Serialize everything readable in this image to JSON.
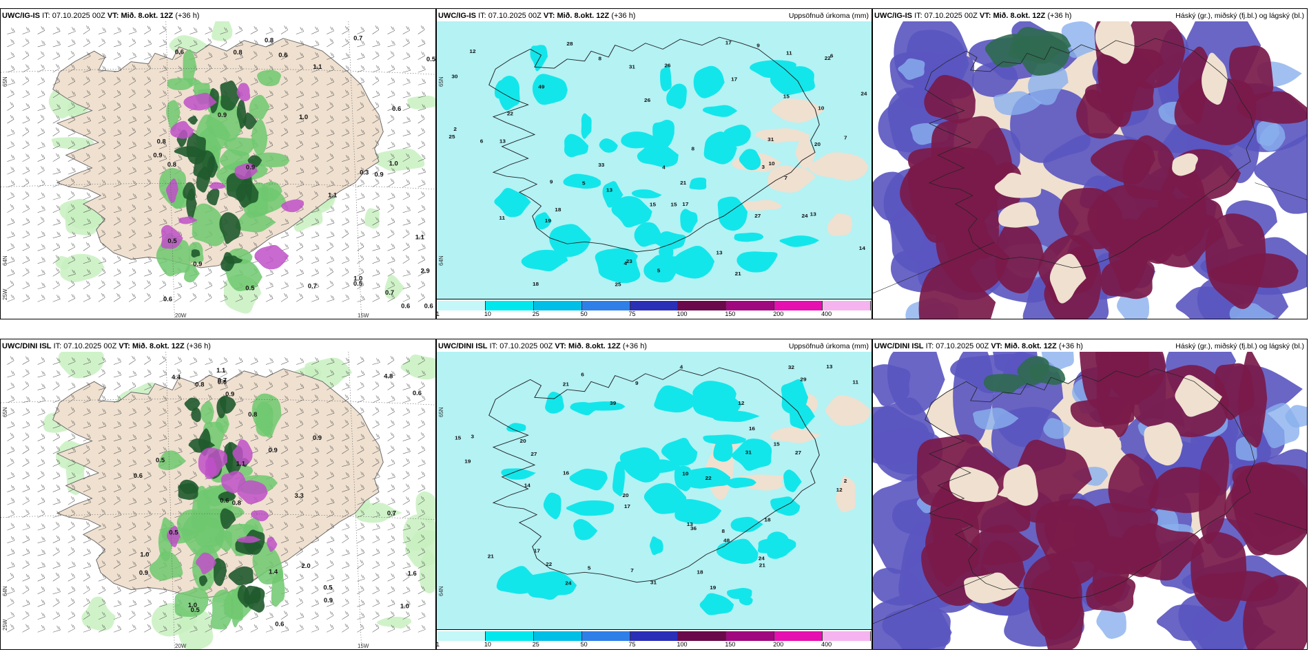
{
  "panels": [
    {
      "id": "ig-precip-type",
      "header": {
        "model": "UWC/IG-IS",
        "it_label": "IT:",
        "it": "07.10.2025 00Z",
        "vt_label": "VT:",
        "vt": "Mið. 8.okt. 12Z",
        "lead": "(+36 h)",
        "right": ""
      },
      "axis": {
        "lat1": "65N",
        "lat2": "64N",
        "lon1": "20W",
        "lon2": "15W",
        "lon3": "25W"
      },
      "values": [
        "0.5",
        "0.9",
        "0.8",
        "0.6",
        "0.7",
        "0.6",
        "1.0",
        "0.9",
        "0.7",
        "1.1",
        "0.3",
        "0.5",
        "0.6",
        "0.6",
        "0.8",
        "2.9",
        "1.0",
        "1.1",
        "0.6",
        "0.9",
        "1.0",
        "0.5",
        "0.9",
        "0.6",
        "0.5",
        "0.8",
        "0.8",
        "0.7",
        "0.9",
        "1.1"
      ]
    },
    {
      "id": "ig-precip-accum",
      "header": {
        "model": "UWC/IG-IS",
        "it_label": "IT:",
        "it": "07.10.2025 00Z",
        "vt_label": "VT:",
        "vt": "Mið. 8.okt. 12Z",
        "lead": "(+36 h)",
        "right": "Uppsöfnuð úrkoma (mm)"
      },
      "axis": {
        "lat1": "65N",
        "lat2": "64N"
      },
      "values": [
        "21",
        "25",
        "28",
        "23",
        "31",
        "18",
        "13",
        "11",
        "21",
        "20",
        "15",
        "17",
        "18",
        "22",
        "22",
        "24",
        "26",
        "17",
        "14",
        "13",
        "24",
        "25",
        "31",
        "26",
        "19",
        "27",
        "15",
        "30",
        "33",
        "49",
        "17",
        "13",
        "12",
        "15",
        "6",
        "5",
        "7",
        "4",
        "8",
        "9",
        "10",
        "5",
        "3",
        "2",
        "6",
        "7",
        "8",
        "4",
        "9",
        "11",
        "13",
        "10"
      ]
    },
    {
      "id": "ig-cloud",
      "header": {
        "model": "UWC/IG-IS",
        "it_label": "IT:",
        "it": "07.10.2025 00Z",
        "vt_label": "VT:",
        "vt": "Mið. 8.okt. 12Z",
        "lead": "(+36 h)",
        "right": "Háský (gr.), miðský (fj.bl.) og lágský (bl.)"
      }
    },
    {
      "id": "dini-precip-type",
      "header": {
        "model": "UWC/DINI ISL",
        "it_label": "IT:",
        "it": "07.10.2025 00Z",
        "vt_label": "VT:",
        "vt": "Mið. 8.okt. 12Z",
        "lead": "(+36 h)",
        "right": ""
      },
      "axis": {
        "lat1": "65N",
        "lat2": "64N",
        "lon1": "20W",
        "lon2": "15W",
        "lon3": "25W"
      },
      "values": [
        "2.0",
        "0.7",
        "0.5",
        "0.8",
        "0.6",
        "0.8",
        "0.6",
        "4.8",
        "1.4",
        "4.4",
        "1.1",
        "1.0",
        "0.5",
        "1.6",
        "1.0",
        "0.9",
        "0.5",
        "0.6",
        "0.9",
        "0.5",
        "0.9",
        "0.7",
        "0.6",
        "0.8",
        "3.3",
        "0.9",
        "1.1",
        "0.6",
        "1.0",
        "0.9"
      ]
    },
    {
      "id": "dini-precip-accum",
      "header": {
        "model": "UWC/DINI ISL",
        "it_label": "IT:",
        "it": "07.10.2025 00Z",
        "vt_label": "VT:",
        "vt": "Mið. 8.okt. 12Z",
        "lead": "(+36 h)",
        "right": "Uppsöfnuð úrkoma (mm)"
      },
      "axis": {
        "lat1": "65N",
        "lat2": "64N"
      },
      "values": [
        "19",
        "21",
        "17",
        "20",
        "15",
        "18",
        "12",
        "16",
        "17",
        "22",
        "21",
        "15",
        "20",
        "13",
        "31",
        "32",
        "19",
        "29",
        "18",
        "27",
        "24",
        "36",
        "24",
        "21",
        "22",
        "16",
        "14",
        "27",
        "31",
        "39",
        "48",
        "13",
        "12",
        "5",
        "6",
        "7",
        "4",
        "3",
        "2",
        "8",
        "9",
        "10",
        "11"
      ]
    },
    {
      "id": "dini-cloud",
      "header": {
        "model": "UWC/DINI ISL",
        "it_label": "IT:",
        "it": "07.10.2025 00Z",
        "vt_label": "VT:",
        "vt": "Mið. 8.okt. 12Z",
        "lead": "(+36 h)",
        "right": "Háský (gr.), miðský (fj.bl.) og lágský (bl.)"
      }
    }
  ],
  "legend": {
    "labels": [
      "1",
      "10",
      "25",
      "50",
      "75",
      "100",
      "150",
      "200",
      "400"
    ],
    "colors": [
      "#c4f7f7",
      "#00e8ee",
      "#00bfe6",
      "#2f7fe8",
      "#2a2fb8",
      "#6a0a4a",
      "#a00880",
      "#e60fb0",
      "#f5b4f0"
    ]
  },
  "colors": {
    "ocean_accum": "#b4f2f4",
    "cyan": "#13e6ea",
    "land": "#efe0d0",
    "green_light": "#c8f0c0",
    "green": "#6ec86e",
    "green_dark": "#1f5a2c",
    "magenta": "#c050c8",
    "cloud_low": "#5a55c0",
    "cloud_mid": "#7a1a4a",
    "cloud_high": "#2f6a50",
    "cloud_blue_light": "#8ab0ee"
  }
}
